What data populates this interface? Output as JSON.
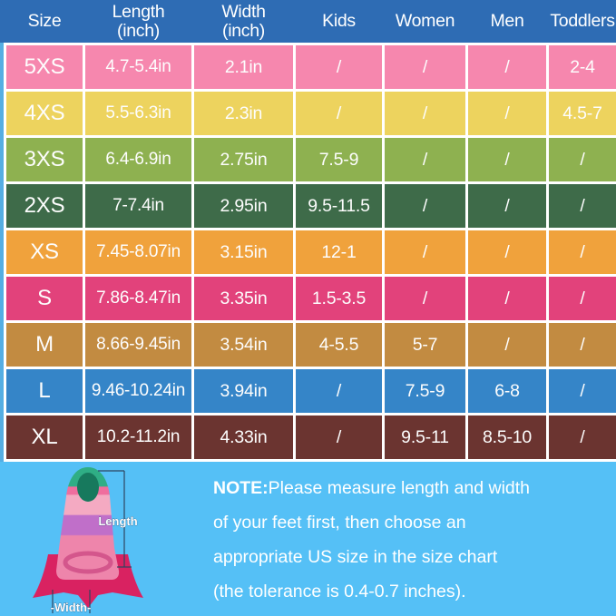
{
  "chart_data": {
    "type": "table",
    "title": "Swim fin size chart",
    "columns": [
      "Size",
      "Length\n(inch)",
      "Width\n(inch)",
      "Kids",
      "Women",
      "Men",
      "Toddlers"
    ],
    "rows": [
      {
        "size": "5XS",
        "length": "4.7-5.4in",
        "width": "2.1in",
        "kids": "/",
        "women": "/",
        "men": "/",
        "toddlers": "2-4",
        "color": "#f687ae"
      },
      {
        "size": "4XS",
        "length": "5.5-6.3in",
        "width": "2.3in",
        "kids": "/",
        "women": "/",
        "men": "/",
        "toddlers": "4.5-7",
        "color": "#edd35e"
      },
      {
        "size": "3XS",
        "length": "6.4-6.9in",
        "width": "2.75in",
        "kids": "7.5-9",
        "women": "/",
        "men": "/",
        "toddlers": "/",
        "color": "#8eb150"
      },
      {
        "size": "2XS",
        "length": "7-7.4in",
        "width": "2.95in",
        "kids": "9.5-11.5",
        "women": "/",
        "men": "/",
        "toddlers": "/",
        "color": "#3e6b49"
      },
      {
        "size": "XS",
        "length": "7.45-8.07in",
        "width": "3.15in",
        "kids": "12-1",
        "women": "/",
        "men": "/",
        "toddlers": "/",
        "color": "#f0a23c"
      },
      {
        "size": "S",
        "length": "7.86-8.47in",
        "width": "3.35in",
        "kids": "1.5-3.5",
        "women": "/",
        "men": "/",
        "toddlers": "/",
        "color": "#e2427b"
      },
      {
        "size": "M",
        "length": "8.66-9.45in",
        "width": "3.54in",
        "kids": "4-5.5",
        "women": "5-7",
        "men": "/",
        "toddlers": "/",
        "color": "#c28b41"
      },
      {
        "size": "L",
        "length": "9.46-10.24in",
        "width": "3.94in",
        "kids": "/",
        "women": "7.5-9",
        "men": "6-8",
        "toddlers": "/",
        "color": "#3585c8"
      },
      {
        "size": "XL",
        "length": "10.2-11.2in",
        "width": "4.33in",
        "kids": "/",
        "women": "9.5-11",
        "men": "8.5-10",
        "toddlers": "/",
        "color": "#6b3430"
      }
    ]
  },
  "footer": {
    "note_bold": "NOTE:",
    "note_text": "Please measure length and width\nof your feet first, then choose an\nappropriate US size in the size chart\n(the tolerance is 0.4-0.7 inches).",
    "length_label": "Length",
    "width_label": "-Width-"
  },
  "colors": {
    "header_bg": "#2e6cb4",
    "grid_line": "#ffffff",
    "footer_bg": "#55c0f6",
    "edge_accent": "#55aee3",
    "annotation_line": "#2f4560",
    "fin_tip": "#2fae85",
    "fin_toe_opening": "#17795d",
    "fin_band_pink": "#ef6e9e",
    "fin_band_light_pink": "#f4aac2",
    "fin_band_purple": "#c06fc9",
    "fin_pocket_pink": "#ee85ab",
    "fin_strap": "#d4568c",
    "fin_blade": "#d92261"
  }
}
